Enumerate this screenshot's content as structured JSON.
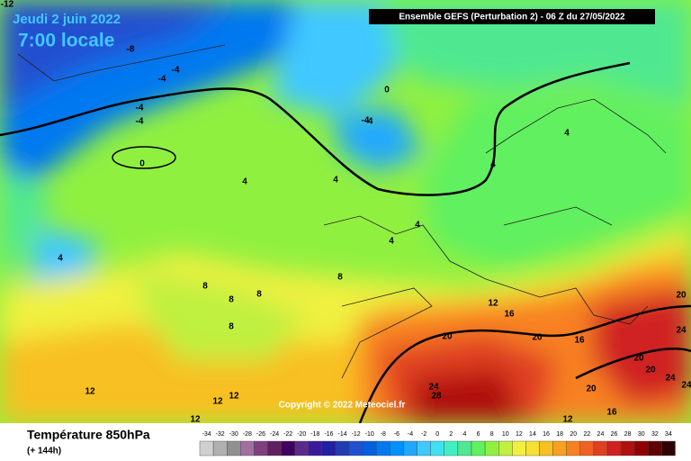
{
  "header": {
    "date": "Jeudi 2 juin 2022",
    "time": "7:00 locale",
    "model": "Ensemble GEFS  (Perturbation 2)  -  06 Z du 27/05/2022"
  },
  "copyright": "Copyright © 2022 Meteociel.fr",
  "footer": {
    "title": "Température 850hPa",
    "range": "(+ 144h)"
  },
  "contour_labels": [
    "-12",
    "-8",
    "-4",
    "-4",
    "-4",
    "-4",
    "-4",
    "0",
    "0",
    "-4",
    "4",
    "4",
    "4",
    "4",
    "4",
    "4",
    "4",
    "8",
    "8",
    "8",
    "8",
    "8",
    "12",
    "12",
    "16",
    "20",
    "20",
    "24",
    "28",
    "20",
    "16",
    "24",
    "20",
    "20",
    "24",
    "24",
    "20",
    "16",
    "12",
    "12",
    "12",
    "12"
  ],
  "legend": {
    "values": [
      -34,
      -32,
      -30,
      -28,
      -26,
      -24,
      -22,
      -20,
      -18,
      -16,
      -14,
      -12,
      -10,
      -8,
      -6,
      -4,
      -2,
      0,
      2,
      4,
      6,
      8,
      10,
      12,
      14,
      16,
      18,
      20,
      22,
      24,
      26,
      28,
      30,
      32,
      34
    ],
    "colors": [
      "#d0d0d0",
      "#b0b0b0",
      "#909090",
      "#a070a0",
      "#804080",
      "#602060",
      "#400060",
      "#5a2a8a",
      "#3a1a9a",
      "#2020a0",
      "#203cb0",
      "#2050d0",
      "#0060e0",
      "#0078f0",
      "#0090ff",
      "#20a8ff",
      "#40c8ff",
      "#40e0f0",
      "#40f0c0",
      "#50e890",
      "#60f060",
      "#90f040",
      "#c0f040",
      "#f0f040",
      "#f8e030",
      "#f8c020",
      "#f8a020",
      "#f88020",
      "#f06020",
      "#e04020",
      "#d02020",
      "#b01010",
      "#900000",
      "#600000",
      "#300000"
    ]
  }
}
